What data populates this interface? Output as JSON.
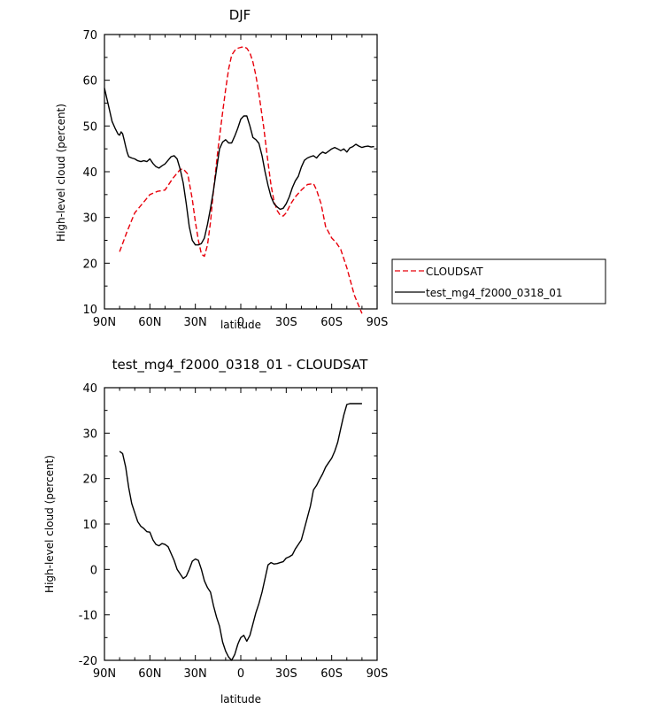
{
  "chart_data": [
    {
      "type": "line",
      "title": "DJF",
      "xlabel": "latitude",
      "ylabel": "High-level cloud (percent)",
      "xlim": [
        -90,
        90
      ],
      "ylim": [
        10,
        70
      ],
      "x_ticks": [
        -90,
        -60,
        -30,
        0,
        30,
        60,
        90
      ],
      "x_tick_labels": [
        "90N",
        "60N",
        "30N",
        "0",
        "30S",
        "60S",
        "90S"
      ],
      "y_ticks": [
        10,
        20,
        30,
        40,
        50,
        60,
        70
      ],
      "y_tick_labels": [
        "10",
        "20",
        "30",
        "40",
        "50",
        "60",
        "70"
      ],
      "legend": "right",
      "series": [
        {
          "name": "CLOUDSAT",
          "color": "#e8000b",
          "dash": "dashed",
          "x": [
            -80,
            -75,
            -70,
            -65,
            -60,
            -55,
            -50,
            -45,
            -40,
            -38,
            -35,
            -32,
            -30,
            -28,
            -26,
            -24,
            -22,
            -20,
            -18,
            -15,
            -12,
            -10,
            -8,
            -6,
            -4,
            -2,
            0,
            2,
            4,
            6,
            8,
            10,
            12,
            15,
            18,
            20,
            22,
            24,
            26,
            28,
            30,
            33,
            36,
            40,
            44,
            48,
            50,
            53,
            56,
            60,
            63,
            66,
            70,
            75,
            80
          ],
          "y": [
            22.5,
            27,
            31,
            33,
            35,
            35.7,
            36,
            38.5,
            40.5,
            40.6,
            39.5,
            34,
            29,
            25,
            22,
            21.5,
            24,
            29,
            36,
            45,
            53,
            58,
            62.5,
            65.5,
            66.5,
            67,
            67.2,
            67.3,
            67,
            66,
            64,
            61,
            57,
            50,
            42,
            37,
            33.5,
            31.5,
            30.5,
            30.3,
            31,
            33,
            34.5,
            36,
            37.2,
            37.4,
            36,
            33,
            28,
            25.5,
            24.5,
            23,
            19,
            13,
            9
          ]
        },
        {
          "name": "test_mg4_f2000_0318_01",
          "color": "#000000",
          "dash": "solid",
          "x": [
            -90,
            -87,
            -85,
            -83,
            -81,
            -80,
            -79,
            -78,
            -77,
            -76,
            -75,
            -74,
            -72,
            -70,
            -68,
            -66,
            -64,
            -62,
            -60,
            -58,
            -56,
            -54,
            -52,
            -50,
            -48,
            -46,
            -44,
            -42,
            -40,
            -38,
            -36,
            -34,
            -32,
            -30,
            -28,
            -26,
            -24,
            -22,
            -20,
            -18,
            -16,
            -14,
            -12,
            -10,
            -8,
            -6,
            -4,
            -2,
            0,
            2,
            4,
            6,
            8,
            10,
            12,
            14,
            16,
            18,
            20,
            22,
            24,
            26,
            28,
            30,
            32,
            34,
            36,
            38,
            40,
            42,
            44,
            46,
            48,
            50,
            52,
            54,
            56,
            58,
            60,
            62,
            64,
            66,
            68,
            70,
            72,
            74,
            76,
            78,
            80,
            82,
            84,
            86,
            88
          ],
          "y": [
            58.3,
            54,
            51,
            49.5,
            48.2,
            48,
            48.7,
            48.3,
            47,
            45.5,
            44.2,
            43.3,
            43,
            42.8,
            42.4,
            42.2,
            42.4,
            42.2,
            42.8,
            41.8,
            41.1,
            40.8,
            41.3,
            41.7,
            42.5,
            43.3,
            43.5,
            42.8,
            40.5,
            37.5,
            33,
            28,
            25,
            24,
            24,
            24.3,
            25.5,
            28.5,
            32,
            36,
            40.5,
            45,
            46.5,
            47,
            46.3,
            46.3,
            47.8,
            49.5,
            51.5,
            52.2,
            52.2,
            50,
            47.5,
            47,
            46.2,
            43.5,
            40,
            37,
            34.5,
            33,
            32.3,
            31.8,
            32,
            33,
            34.5,
            36.5,
            38,
            39,
            41,
            42.5,
            43,
            43.3,
            43.5,
            43,
            43.8,
            44.3,
            44,
            44.5,
            45,
            45.3,
            45,
            44.6,
            45,
            44.3,
            45.2,
            45.5,
            46,
            45.6,
            45.3,
            45.5,
            45.6,
            45.4,
            45.5
          ]
        }
      ]
    },
    {
      "type": "line",
      "title": "test_mg4_f2000_0318_01 - CLOUDSAT",
      "xlabel": "latitude",
      "ylabel": "High-level cloud (percent)",
      "xlim": [
        -90,
        90
      ],
      "ylim": [
        -20,
        40
      ],
      "x_ticks": [
        -90,
        -60,
        -30,
        0,
        30,
        60,
        90
      ],
      "x_tick_labels": [
        "90N",
        "60N",
        "30N",
        "0",
        "30S",
        "60S",
        "90S"
      ],
      "y_ticks": [
        -20,
        -10,
        0,
        10,
        20,
        30,
        40
      ],
      "y_tick_labels": [
        "-20",
        "-10",
        "0",
        "10",
        "20",
        "30",
        "40"
      ],
      "series": [
        {
          "color": "#000000",
          "dash": "solid",
          "x": [
            -80,
            -78,
            -76,
            -74,
            -72,
            -70,
            -68,
            -66,
            -64,
            -62,
            -60,
            -58,
            -56,
            -54,
            -52,
            -50,
            -48,
            -46,
            -44,
            -42,
            -40,
            -38,
            -36,
            -34,
            -32,
            -30,
            -28,
            -26,
            -24,
            -22,
            -20,
            -18,
            -16,
            -14,
            -12,
            -10,
            -8,
            -6,
            -4,
            -2,
            -1,
            0,
            2,
            4,
            6,
            8,
            10,
            12,
            14,
            16,
            18,
            20,
            22,
            24,
            26,
            28,
            30,
            32,
            34,
            36,
            38,
            40,
            42,
            44,
            46,
            48,
            50,
            52,
            54,
            56,
            58,
            60,
            62,
            64,
            66,
            68,
            70,
            72,
            74,
            76,
            78,
            80
          ],
          "y": [
            26,
            25.5,
            22.5,
            18,
            14.5,
            12.5,
            10.5,
            9.5,
            9,
            8.3,
            8.2,
            6.5,
            5.5,
            5.2,
            5.7,
            5.5,
            5,
            3.5,
            2,
            0,
            -1,
            -2,
            -1.5,
            0,
            1.8,
            2.3,
            2,
            0,
            -2.5,
            -4,
            -5,
            -8,
            -10.5,
            -12.5,
            -16,
            -18,
            -19.3,
            -20,
            -18.7,
            -16.5,
            -15.7,
            -15,
            -14.5,
            -15.8,
            -14.5,
            -12,
            -9.5,
            -7.5,
            -5,
            -2,
            1,
            1.5,
            1.2,
            1.3,
            1.5,
            1.7,
            2.5,
            2.8,
            3.2,
            4.5,
            5.5,
            6.5,
            9,
            11.5,
            14,
            17.5,
            18.5,
            19.8,
            21,
            22.5,
            23.5,
            24.5,
            26,
            28,
            31,
            34,
            36.3,
            36.5,
            36.5,
            36.5,
            36.5,
            36.5
          ]
        }
      ]
    }
  ]
}
